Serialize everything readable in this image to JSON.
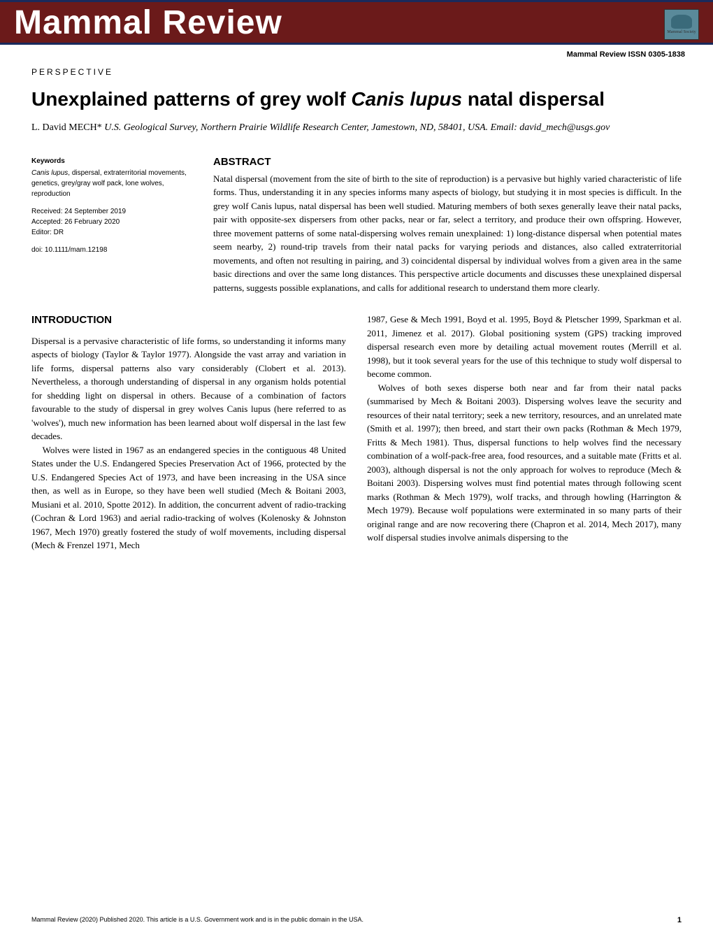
{
  "header": {
    "journal_title": "Mammal Review",
    "logo_label": "Mammal Society",
    "issn": "Mammal Review ISSN 0305-1838"
  },
  "article": {
    "type": "PERSPECTIVE",
    "title_pre": "Unexplained patterns of grey wolf ",
    "title_italic": "Canis lupus",
    "title_post": " natal dispersal",
    "author_name": "L. David MECH*",
    "author_affiliation": " U.S. Geological Survey, Northern Prairie Wildlife Research Center, Jamestown, ND, 58401, USA. Email: david_mech@usgs.gov"
  },
  "meta": {
    "keywords_label": "Keywords",
    "keywords_italic": "Canis lupus",
    "keywords_rest": ", dispersal, extraterritorial movements, genetics, grey/gray wolf pack, lone wolves, reproduction",
    "received": "Received: 24 September 2019",
    "accepted": "Accepted: 26 February 2020",
    "editor": "Editor: DR",
    "doi": "doi: 10.1111/mam.12198"
  },
  "abstract": {
    "heading": "ABSTRACT",
    "text": "Natal dispersal (movement from the site of birth to the site of reproduction) is a pervasive but highly varied characteristic of life forms. Thus, understanding it in any species informs many aspects of biology, but studying it in most species is difficult. In the grey wolf Canis lupus, natal dispersal has been well studied. Maturing members of both sexes generally leave their natal packs, pair with opposite-sex dispersers from other packs, near or far, select a territory, and produce their own offspring. However, three movement patterns of some natal-dispersing wolves remain unexplained: 1) long-distance dispersal when potential mates seem nearby, 2) round-trip travels from their natal packs for varying periods and distances, also called extraterritorial movements, and often not resulting in pairing, and 3) coincidental dispersal by individual wolves from a given area in the same basic directions and over the same long distances. This perspective article documents and discusses these unexplained dispersal patterns, suggests possible explanations, and calls for additional research to understand them more clearly."
  },
  "body": {
    "intro_heading": "INTRODUCTION",
    "col1_p1": "Dispersal is a pervasive characteristic of life forms, so understanding it informs many aspects of biology (Taylor & Taylor 1977). Alongside the vast array and variation in life forms, dispersal patterns also vary considerably (Clobert et al. 2013). Nevertheless, a thorough understanding of dispersal in any organism holds potential for shedding light on dispersal in others. Because of a combination of factors favourable to the study of dispersal in grey wolves Canis lupus (here referred to as 'wolves'), much new information has been learned about wolf dispersal in the last few decades.",
    "col1_p2": "Wolves were listed in 1967 as an endangered species in the contiguous 48 United States under the U.S. Endangered Species Preservation Act of 1966, protected by the U.S. Endangered Species Act of 1973, and have been increasing in the USA since then, as well as in Europe, so they have been well studied (Mech & Boitani 2003, Musiani et al. 2010, Spotte 2012). In addition, the concurrent advent of radio-tracking (Cochran & Lord 1963) and aerial radio-tracking of wolves (Kolenosky & Johnston 1967, Mech 1970) greatly fostered the study of wolf movements, including dispersal (Mech & Frenzel 1971, Mech",
    "col2_p1_cont": "1987, Gese & Mech 1991, Boyd et al. 1995, Boyd & Pletscher 1999, Sparkman et al. 2011, Jimenez et al. 2017). Global positioning system (GPS) tracking improved dispersal research even more by detailing actual movement routes (Merrill et al. 1998), but it took several years for the use of this technique to study wolf dispersal to become common.",
    "col2_p2": "Wolves of both sexes disperse both near and far from their natal packs (summarised by Mech & Boitani 2003). Dispersing wolves leave the security and resources of their natal territory; seek a new territory, resources, and an unrelated mate (Smith et al. 1997); then breed, and start their own packs (Rothman & Mech 1979, Fritts & Mech 1981). Thus, dispersal functions to help wolves find the necessary combination of a wolf-pack-free area, food resources, and a suitable mate (Fritts et al. 2003), although dispersal is not the only approach for wolves to reproduce (Mech & Boitani 2003). Dispersing wolves must find potential mates through following scent marks (Rothman & Mech 1979), wolf tracks, and through howling (Harrington & Mech 1979). Because wolf populations were exterminated in so many parts of their original range and are now recovering there (Chapron et al. 2014, Mech 2017), many wolf dispersal studies involve animals dispersing to the"
  },
  "footer": {
    "copyright": "Mammal Review (2020) Published 2020. This article is a U.S. Government work and is in the public domain in the USA.",
    "page": "1"
  }
}
